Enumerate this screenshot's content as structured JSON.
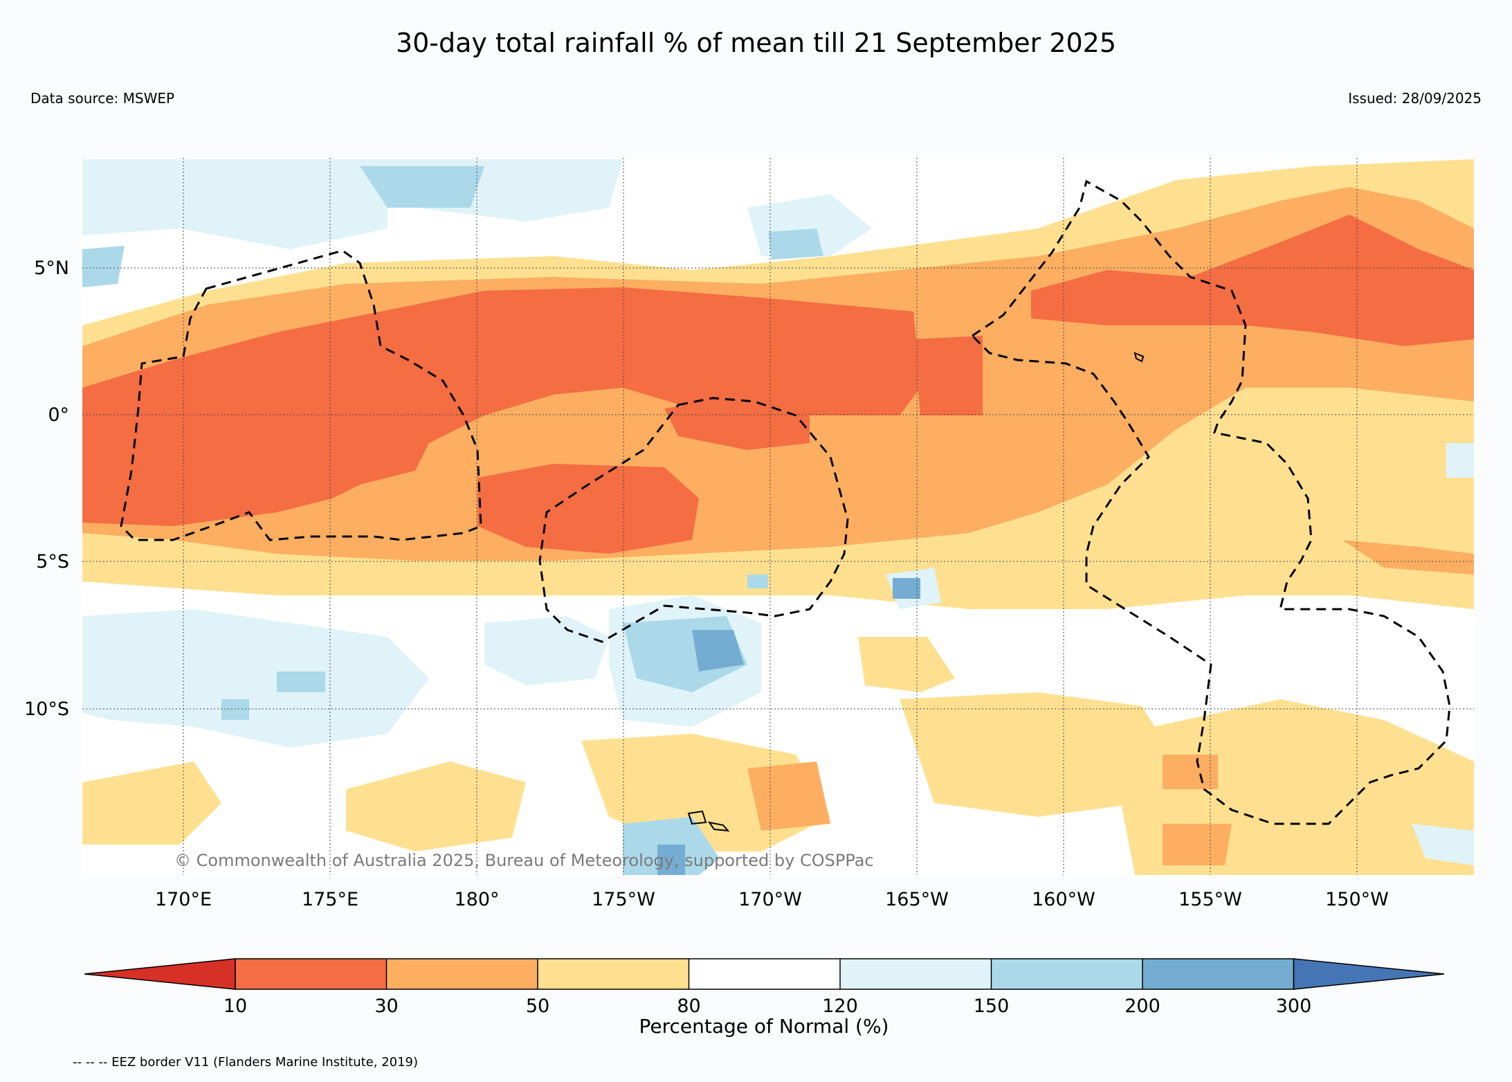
{
  "title": "30-day total rainfall % of mean till 21 September 2025",
  "data_source": "Data source: MSWEP",
  "issued": "Issued: 28/09/2025",
  "copyright": "© Commonwealth of Australia 2025, Bureau of Meteorology, supported by COSPPac",
  "footnote": "-- -- -- EEZ border V11 (Flanders Marine Institute, 2019)",
  "map": {
    "lat_labels": [
      "5°N",
      "0°",
      "5°S",
      "10°S"
    ],
    "lon_labels": [
      "170°E",
      "175°E",
      "180°",
      "175°W",
      "170°W",
      "165°W",
      "160°W",
      "155°W",
      "150°W"
    ]
  },
  "colorbar": {
    "label": "Percentage of Normal (%)",
    "ticks": [
      "10",
      "30",
      "50",
      "80",
      "120",
      "150",
      "200",
      "300"
    ],
    "colors": [
      "#d73027",
      "#f46d43",
      "#fdae61",
      "#fee090",
      "#ffffff",
      "#e0f3f8",
      "#abd9e9",
      "#74add1",
      "#4575b4"
    ]
  }
}
